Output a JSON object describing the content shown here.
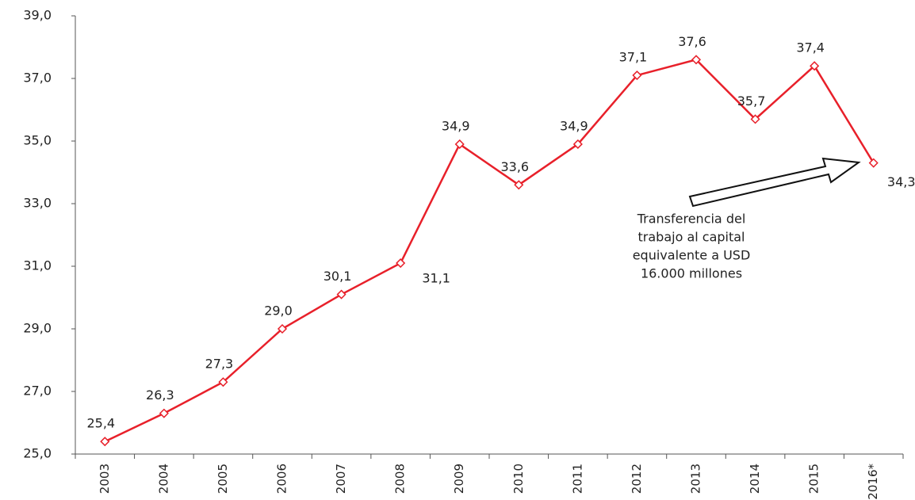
{
  "chart_data": {
    "type": "line",
    "categories": [
      "2003",
      "2004",
      "2005",
      "2006",
      "2007",
      "2008",
      "2009",
      "2010",
      "2011",
      "2012",
      "2013",
      "2014",
      "2015",
      "2016*"
    ],
    "series": [
      {
        "color": "#e8202a",
        "values": [
          25.4,
          26.3,
          27.3,
          29.0,
          30.1,
          31.1,
          34.9,
          33.6,
          34.9,
          37.1,
          37.6,
          35.7,
          37.4,
          34.3
        ],
        "value_labels": [
          "25,4",
          "26,3",
          "27,3",
          "29,0",
          "30,1",
          "31,1",
          "34,9",
          "33,6",
          "34,9",
          "37,1",
          "37,6",
          "35,7",
          "37,4",
          "34,3"
        ]
      }
    ],
    "ylim": [
      25,
      39
    ],
    "yticks": [
      {
        "value": 25,
        "label": "25,0"
      },
      {
        "value": 27,
        "label": "27,0"
      },
      {
        "value": 29,
        "label": "29,0"
      },
      {
        "value": 31,
        "label": "31,0"
      },
      {
        "value": 33,
        "label": "33,0"
      },
      {
        "value": 35,
        "label": "35,0"
      },
      {
        "value": 37,
        "label": "37,0"
      },
      {
        "value": 39,
        "label": "39,0"
      }
    ],
    "annotation": [
      "Transferencia del",
      "trabajo al capital",
      "equivalente a USD",
      "16.000 millones"
    ]
  }
}
